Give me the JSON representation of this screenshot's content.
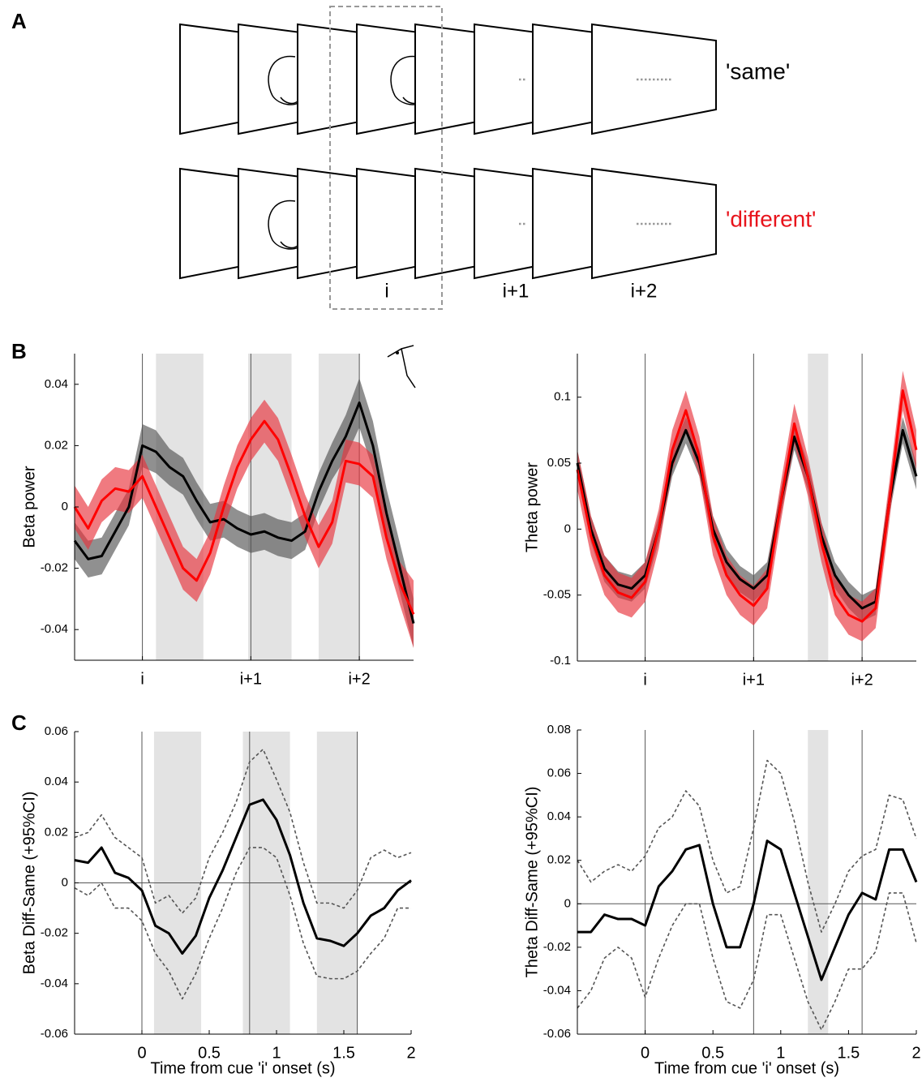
{
  "panel_labels": [
    "A",
    "B",
    "C"
  ],
  "panel_a": {
    "rows": [
      "'same'",
      "'different'"
    ],
    "frame_labels": [
      "i",
      "i+1",
      "i+2"
    ]
  },
  "chart_data": [
    {
      "type": "line",
      "ylabel": "Beta power",
      "x": [
        -0.5,
        -0.4,
        -0.3,
        -0.2,
        -0.1,
        0,
        0.1,
        0.2,
        0.3,
        0.4,
        0.5,
        0.6,
        0.7,
        0.8,
        0.9,
        1.0,
        1.1,
        1.2,
        1.3,
        1.4,
        1.5,
        1.6,
        1.7,
        1.8,
        1.9,
        2.0
      ],
      "xlim": [
        -0.5,
        2
      ],
      "ylim": [
        -0.05,
        0.05
      ],
      "xticks": [
        {
          "value": 0,
          "label": "i"
        },
        {
          "value": 0.8,
          "label": "i+1"
        },
        {
          "value": 1.6,
          "label": "i+2"
        }
      ],
      "yticks": [
        -0.04,
        -0.02,
        0,
        0.02,
        0.04
      ],
      "vlines": [
        0,
        0.8,
        1.6
      ],
      "shaded": [
        [
          0.1,
          0.45
        ],
        [
          0.78,
          1.1
        ],
        [
          1.3,
          1.6
        ]
      ],
      "series": [
        {
          "color": "#000000",
          "band_color": "#555555",
          "values": [
            -0.011,
            -0.017,
            -0.016,
            -0.008,
            0,
            0.02,
            0.018,
            0.013,
            0.01,
            0.002,
            -0.005,
            -0.004,
            -0.007,
            -0.009,
            -0.008,
            -0.01,
            -0.011,
            -0.008,
            0.005,
            0.015,
            0.023,
            0.034,
            0.02,
            -0.002,
            -0.02,
            -0.038
          ],
          "ci_upper": [
            -0.005,
            -0.011,
            -0.01,
            -0.002,
            0.006,
            0.027,
            0.025,
            0.019,
            0.016,
            0.008,
            0.001,
            0.002,
            -0.001,
            -0.003,
            -0.002,
            -0.004,
            -0.005,
            -0.002,
            0.011,
            0.021,
            0.03,
            0.042,
            0.028,
            0.006,
            -0.012,
            -0.03
          ],
          "ci_lower": [
            -0.017,
            -0.023,
            -0.022,
            -0.014,
            -0.006,
            0.013,
            0.011,
            0.007,
            0.004,
            -0.004,
            -0.011,
            -0.01,
            -0.013,
            -0.015,
            -0.014,
            -0.016,
            -0.017,
            -0.014,
            -0.001,
            0.009,
            0.016,
            0.026,
            0.012,
            -0.01,
            -0.028,
            -0.046
          ]
        },
        {
          "color": "#ff0000",
          "band_color": "#e8323c",
          "values": [
            0,
            -0.007,
            0.002,
            0.006,
            0.005,
            0.01,
            0,
            -0.01,
            -0.02,
            -0.024,
            -0.015,
            0,
            0.013,
            0.022,
            0.028,
            0.022,
            0.01,
            -0.003,
            -0.013,
            -0.005,
            0.015,
            0.014,
            0.01,
            -0.01,
            -0.025,
            -0.035
          ],
          "ci_upper": [
            0.007,
            0,
            0.009,
            0.013,
            0.012,
            0.017,
            0.007,
            -0.003,
            -0.013,
            -0.017,
            -0.008,
            0.007,
            0.02,
            0.029,
            0.035,
            0.029,
            0.017,
            0.004,
            -0.006,
            0.002,
            0.022,
            0.021,
            0.017,
            -0.003,
            -0.018,
            -0.024
          ],
          "ci_lower": [
            -0.007,
            -0.014,
            -0.005,
            -0.001,
            -0.002,
            0.003,
            -0.007,
            -0.017,
            -0.027,
            -0.031,
            -0.022,
            -0.007,
            0.006,
            0.015,
            0.021,
            0.015,
            0.003,
            -0.01,
            -0.02,
            -0.012,
            0.008,
            0.007,
            0.003,
            -0.017,
            -0.032,
            -0.046
          ]
        }
      ]
    },
    {
      "type": "line",
      "ylabel": "Theta power",
      "x": [
        -0.5,
        -0.4,
        -0.3,
        -0.2,
        -0.1,
        0,
        0.1,
        0.2,
        0.3,
        0.4,
        0.5,
        0.6,
        0.7,
        0.8,
        0.9,
        1.0,
        1.1,
        1.2,
        1.3,
        1.4,
        1.5,
        1.6,
        1.7,
        1.8,
        1.9,
        2.0
      ],
      "xlim": [
        -0.5,
        2
      ],
      "ylim": [
        -0.1,
        0.133
      ],
      "xticks": [
        {
          "value": 0,
          "label": "i"
        },
        {
          "value": 0.8,
          "label": "i+1"
        },
        {
          "value": 1.6,
          "label": "i+2"
        }
      ],
      "yticks": [
        -0.1,
        -0.05,
        0,
        0.05,
        0.1
      ],
      "vlines": [
        0,
        0.8,
        1.6
      ],
      "shaded": [
        [
          1.2,
          1.35
        ]
      ],
      "series": [
        {
          "color": "#000000",
          "band_color": "#555555",
          "values": [
            0.05,
            0,
            -0.03,
            -0.042,
            -0.045,
            -0.035,
            0,
            0.05,
            0.075,
            0.05,
            0,
            -0.025,
            -0.038,
            -0.045,
            -0.035,
            0.02,
            0.07,
            0.04,
            -0.005,
            -0.035,
            -0.05,
            -0.06,
            -0.055,
            0.02,
            0.075,
            0.04
          ],
          "ci_upper": [
            0.06,
            0.01,
            -0.02,
            -0.032,
            -0.035,
            -0.025,
            0.01,
            0.06,
            0.085,
            0.06,
            0.01,
            -0.015,
            -0.028,
            -0.035,
            -0.025,
            0.03,
            0.08,
            0.05,
            0.005,
            -0.025,
            -0.04,
            -0.05,
            -0.045,
            0.03,
            0.085,
            0.05
          ],
          "ci_lower": [
            0.04,
            -0.01,
            -0.04,
            -0.052,
            -0.055,
            -0.045,
            -0.01,
            0.04,
            0.065,
            0.04,
            -0.01,
            -0.035,
            -0.048,
            -0.055,
            -0.045,
            0.01,
            0.06,
            0.03,
            -0.015,
            -0.045,
            -0.06,
            -0.07,
            -0.065,
            0.01,
            0.065,
            0.03
          ]
        },
        {
          "color": "#ff0000",
          "band_color": "#e8323c",
          "values": [
            0.045,
            -0.005,
            -0.035,
            -0.048,
            -0.052,
            -0.04,
            0,
            0.06,
            0.09,
            0.055,
            -0.005,
            -0.035,
            -0.05,
            -0.058,
            -0.045,
            0.02,
            0.08,
            0.04,
            -0.01,
            -0.05,
            -0.065,
            -0.07,
            -0.06,
            0.02,
            0.105,
            0.06
          ],
          "ci_upper": [
            0.06,
            0.01,
            -0.02,
            -0.033,
            -0.037,
            -0.025,
            0.015,
            0.075,
            0.105,
            0.07,
            0.01,
            -0.02,
            -0.035,
            -0.043,
            -0.03,
            0.035,
            0.095,
            0.055,
            0.005,
            -0.035,
            -0.05,
            -0.055,
            -0.045,
            0.035,
            0.12,
            0.075
          ],
          "ci_lower": [
            0.03,
            -0.02,
            -0.05,
            -0.063,
            -0.067,
            -0.055,
            -0.015,
            0.045,
            0.075,
            0.04,
            -0.02,
            -0.05,
            -0.065,
            -0.073,
            -0.06,
            0.005,
            0.065,
            0.025,
            -0.025,
            -0.065,
            -0.08,
            -0.085,
            -0.075,
            0.005,
            0.09,
            0.045
          ]
        }
      ]
    },
    {
      "type": "line",
      "ylabel": "Beta Diff-Same (+95%CI)",
      "xlabel": "Time from cue 'i' onset (s)",
      "x": [
        -0.5,
        -0.4,
        -0.3,
        -0.2,
        -0.1,
        0,
        0.1,
        0.2,
        0.3,
        0.4,
        0.5,
        0.6,
        0.7,
        0.8,
        0.9,
        1.0,
        1.1,
        1.2,
        1.3,
        1.4,
        1.5,
        1.6,
        1.7,
        1.8,
        1.9,
        2.0
      ],
      "xlim": [
        -0.5,
        2
      ],
      "ylim": [
        -0.06,
        0.06
      ],
      "xticks": [
        0,
        0.5,
        1,
        1.5,
        2
      ],
      "yticks": [
        -0.06,
        -0.04,
        -0.02,
        0,
        0.02,
        0.04,
        0.06
      ],
      "vlines": [
        0,
        0.8,
        1.6
      ],
      "hline": 0,
      "shaded": [
        [
          0.09,
          0.44
        ],
        [
          0.75,
          1.1
        ],
        [
          1.3,
          1.6
        ]
      ],
      "series": [
        {
          "color": "#000000",
          "values": [
            0.009,
            0.008,
            0.014,
            0.004,
            0.002,
            -0.003,
            -0.017,
            -0.02,
            -0.028,
            -0.021,
            -0.006,
            0.005,
            0.018,
            0.031,
            0.033,
            0.025,
            0.011,
            -0.008,
            -0.022,
            -0.023,
            -0.025,
            -0.02,
            -0.013,
            -0.01,
            -0.003,
            0.001
          ]
        },
        {
          "color": "#555555",
          "dashed": true,
          "values": [
            0.018,
            0.02,
            0.027,
            0.018,
            0.014,
            0.01,
            -0.008,
            -0.005,
            -0.012,
            -0.006,
            0.01,
            0.02,
            0.032,
            0.048,
            0.053,
            0.041,
            0.028,
            0.008,
            -0.008,
            -0.008,
            -0.01,
            -0.003,
            0.01,
            0.013,
            0.01,
            0.012
          ]
        },
        {
          "color": "#555555",
          "dashed": true,
          "values": [
            -0.002,
            -0.005,
            0,
            -0.01,
            -0.01,
            -0.015,
            -0.028,
            -0.035,
            -0.046,
            -0.036,
            -0.022,
            -0.01,
            0.004,
            0.014,
            0.014,
            0.01,
            -0.005,
            -0.024,
            -0.037,
            -0.038,
            -0.038,
            -0.035,
            -0.028,
            -0.022,
            -0.01,
            -0.01
          ]
        }
      ]
    },
    {
      "type": "line",
      "ylabel": "Theta Diff-Same (+95%CI)",
      "xlabel": "Time from cue 'i' onset (s)",
      "x": [
        -0.5,
        -0.4,
        -0.3,
        -0.2,
        -0.1,
        0,
        0.1,
        0.2,
        0.3,
        0.4,
        0.5,
        0.6,
        0.7,
        0.8,
        0.9,
        1.0,
        1.1,
        1.2,
        1.3,
        1.4,
        1.5,
        1.6,
        1.7,
        1.8,
        1.9,
        2.0
      ],
      "xlim": [
        -0.5,
        2
      ],
      "ylim": [
        -0.06,
        0.08
      ],
      "xticks": [
        0,
        0.5,
        1,
        1.5,
        2
      ],
      "yticks": [
        -0.06,
        -0.04,
        -0.02,
        0,
        0.02,
        0.04,
        0.06,
        0.08
      ],
      "vlines": [
        0,
        0.8,
        1.6
      ],
      "hline": 0,
      "shaded": [
        [
          1.2,
          1.35
        ]
      ],
      "series": [
        {
          "color": "#000000",
          "values": [
            -0.013,
            -0.013,
            -0.005,
            -0.007,
            -0.007,
            -0.01,
            0.008,
            0.015,
            0.025,
            0.027,
            0,
            -0.02,
            -0.02,
            0,
            0.029,
            0.025,
            0.005,
            -0.015,
            -0.035,
            -0.02,
            -0.005,
            0.005,
            0.002,
            0.025,
            0.025,
            0.01
          ]
        },
        {
          "color": "#555555",
          "dashed": true,
          "values": [
            0.02,
            0.01,
            0.015,
            0.018,
            0.015,
            0.022,
            0.035,
            0.04,
            0.052,
            0.045,
            0.02,
            0.005,
            0.008,
            0.035,
            0.066,
            0.06,
            0.038,
            0.01,
            -0.013,
            0,
            0.015,
            0.022,
            0.025,
            0.05,
            0.048,
            0.03
          ]
        },
        {
          "color": "#555555",
          "dashed": true,
          "values": [
            -0.048,
            -0.04,
            -0.025,
            -0.02,
            -0.025,
            -0.043,
            -0.025,
            -0.01,
            0,
            0,
            -0.025,
            -0.045,
            -0.048,
            -0.035,
            -0.005,
            -0.005,
            -0.025,
            -0.045,
            -0.058,
            -0.045,
            -0.03,
            -0.03,
            -0.022,
            0.005,
            0.005,
            -0.018
          ]
        }
      ]
    }
  ]
}
